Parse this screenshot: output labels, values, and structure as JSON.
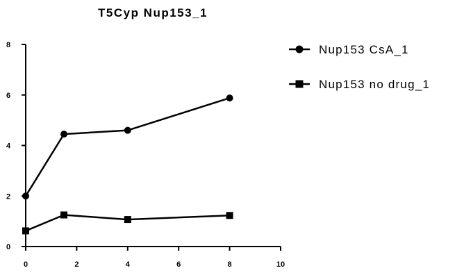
{
  "chart_data": {
    "type": "line",
    "title": "T5Cyp Nup153_1",
    "xlabel": "",
    "ylabel": "",
    "xlim": [
      0,
      10
    ],
    "ylim": [
      0,
      8
    ],
    "xticks": [
      0,
      2,
      4,
      6,
      8,
      10
    ],
    "yticks": [
      0,
      2,
      4,
      6,
      8
    ],
    "grid": false,
    "legend_position": "right",
    "series": [
      {
        "name": "Nup153 CsA_1",
        "marker": "circle",
        "x": [
          0,
          1.5,
          4,
          8
        ],
        "y": [
          2.0,
          4.45,
          4.6,
          5.88
        ]
      },
      {
        "name": "Nup153 no drug_1",
        "marker": "square",
        "x": [
          0,
          1.5,
          4,
          8
        ],
        "y": [
          0.62,
          1.25,
          1.07,
          1.23
        ]
      }
    ]
  },
  "colors": {
    "line": "#000000",
    "background": "#ffffff"
  }
}
